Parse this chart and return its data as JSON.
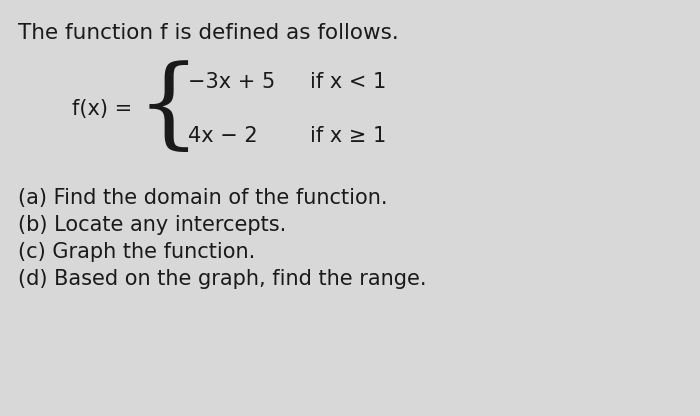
{
  "background_color": "#d8d8d8",
  "title_text": "The function f is defined as follows.",
  "title_fontsize": 15.5,
  "fx_label": "f(x) =",
  "fx_label_fontsize": 15,
  "case1_expr": "−3x + 5",
  "case1_cond": "if x < 1",
  "case2_expr": "4x − 2",
  "case2_cond": "if x ≥ 1",
  "expr_fontsize": 15,
  "questions": [
    "(a) Find the domain of the function.",
    "(b) Locate any intercepts.",
    "(c) Graph the function.",
    "(d) Based on the graph, find the range."
  ],
  "questions_fontsize": 15,
  "text_color": "#1a1a1a",
  "fig_width": 7.0,
  "fig_height": 4.16,
  "dpi": 100
}
